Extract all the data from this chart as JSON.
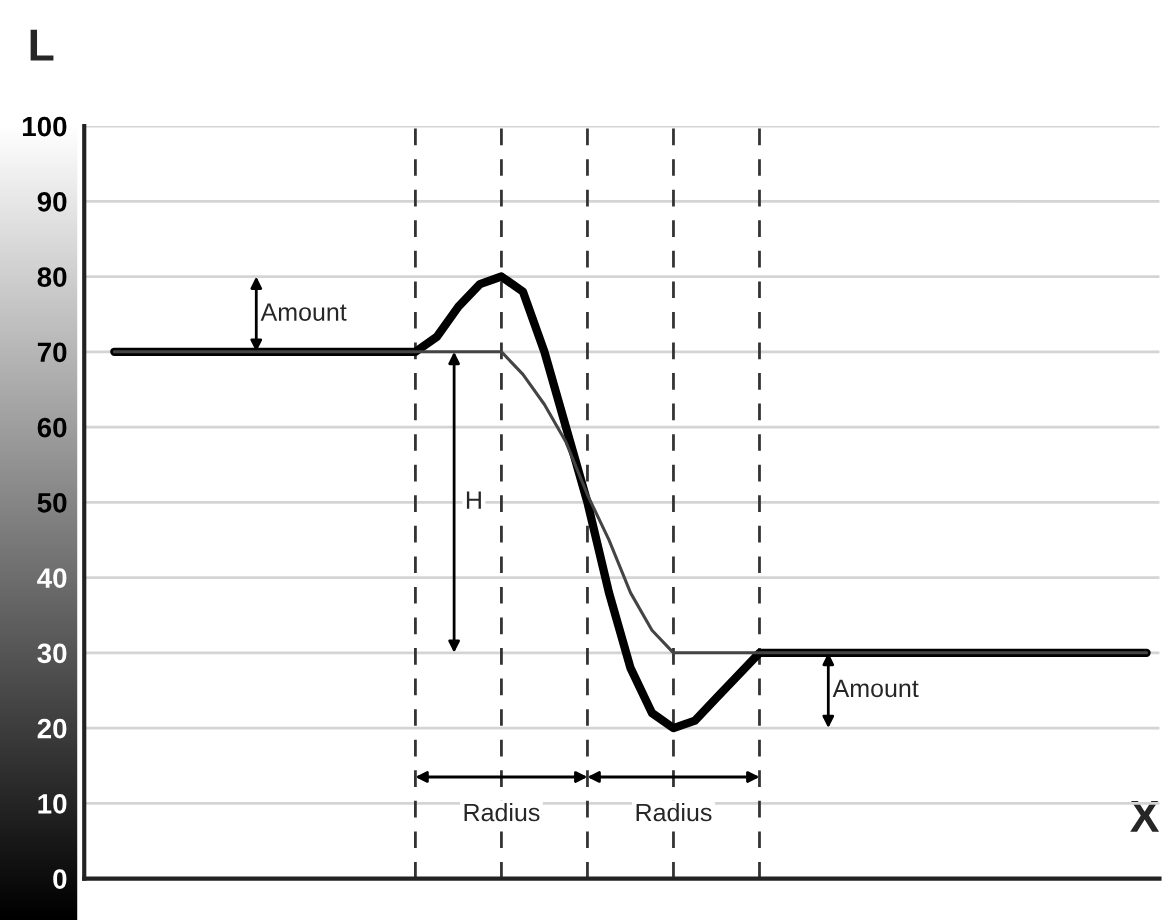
{
  "chart_data": {
    "type": "line",
    "xlabel": "X",
    "ylabel": "L",
    "categories": [
      null,
      null,
      null,
      null,
      null,
      null,
      null,
      null,
      null,
      null,
      null,
      null,
      null,
      null,
      null,
      null,
      null,
      null,
      null,
      null,
      null,
      null,
      null,
      null,
      null,
      null,
      null,
      null,
      null,
      null,
      null,
      null,
      null,
      null,
      null,
      null,
      null,
      null,
      null,
      null,
      null,
      null,
      null,
      null,
      null,
      null,
      null,
      null,
      null
    ],
    "series": [
      {
        "color": "#000000",
        "values": [
          70,
          70,
          70,
          70,
          70,
          70,
          70,
          70,
          70,
          70,
          70,
          70,
          70,
          70,
          70,
          72,
          76,
          79,
          80,
          78,
          70,
          60,
          50,
          38,
          28,
          22,
          20,
          21,
          24,
          27,
          30,
          30,
          30,
          30,
          30,
          30,
          30,
          30,
          30,
          30,
          30,
          30,
          30,
          30,
          30,
          30,
          30,
          30,
          30
        ]
      },
      {
        "color": "#444444",
        "values": [
          70,
          70,
          70,
          70,
          70,
          70,
          70,
          70,
          70,
          70,
          70,
          70,
          70,
          70,
          70,
          70,
          70,
          70,
          70,
          67,
          63,
          58,
          51,
          45,
          38,
          33,
          30,
          30,
          30,
          30,
          30,
          30,
          30,
          30,
          30,
          30,
          30,
          30,
          30,
          30,
          30,
          30,
          30,
          30,
          30,
          30,
          30,
          30,
          30
        ]
      }
    ],
    "ylim": [
      0,
      100
    ],
    "yticks": [
      0,
      10,
      20,
      30,
      40,
      50,
      60,
      70,
      80,
      90,
      100
    ],
    "grid": true,
    "marker": "none",
    "line_style": "solid",
    "legend": false,
    "annotations": [
      "Amount",
      "Amount",
      "H",
      "Radius",
      "Radius"
    ]
  }
}
